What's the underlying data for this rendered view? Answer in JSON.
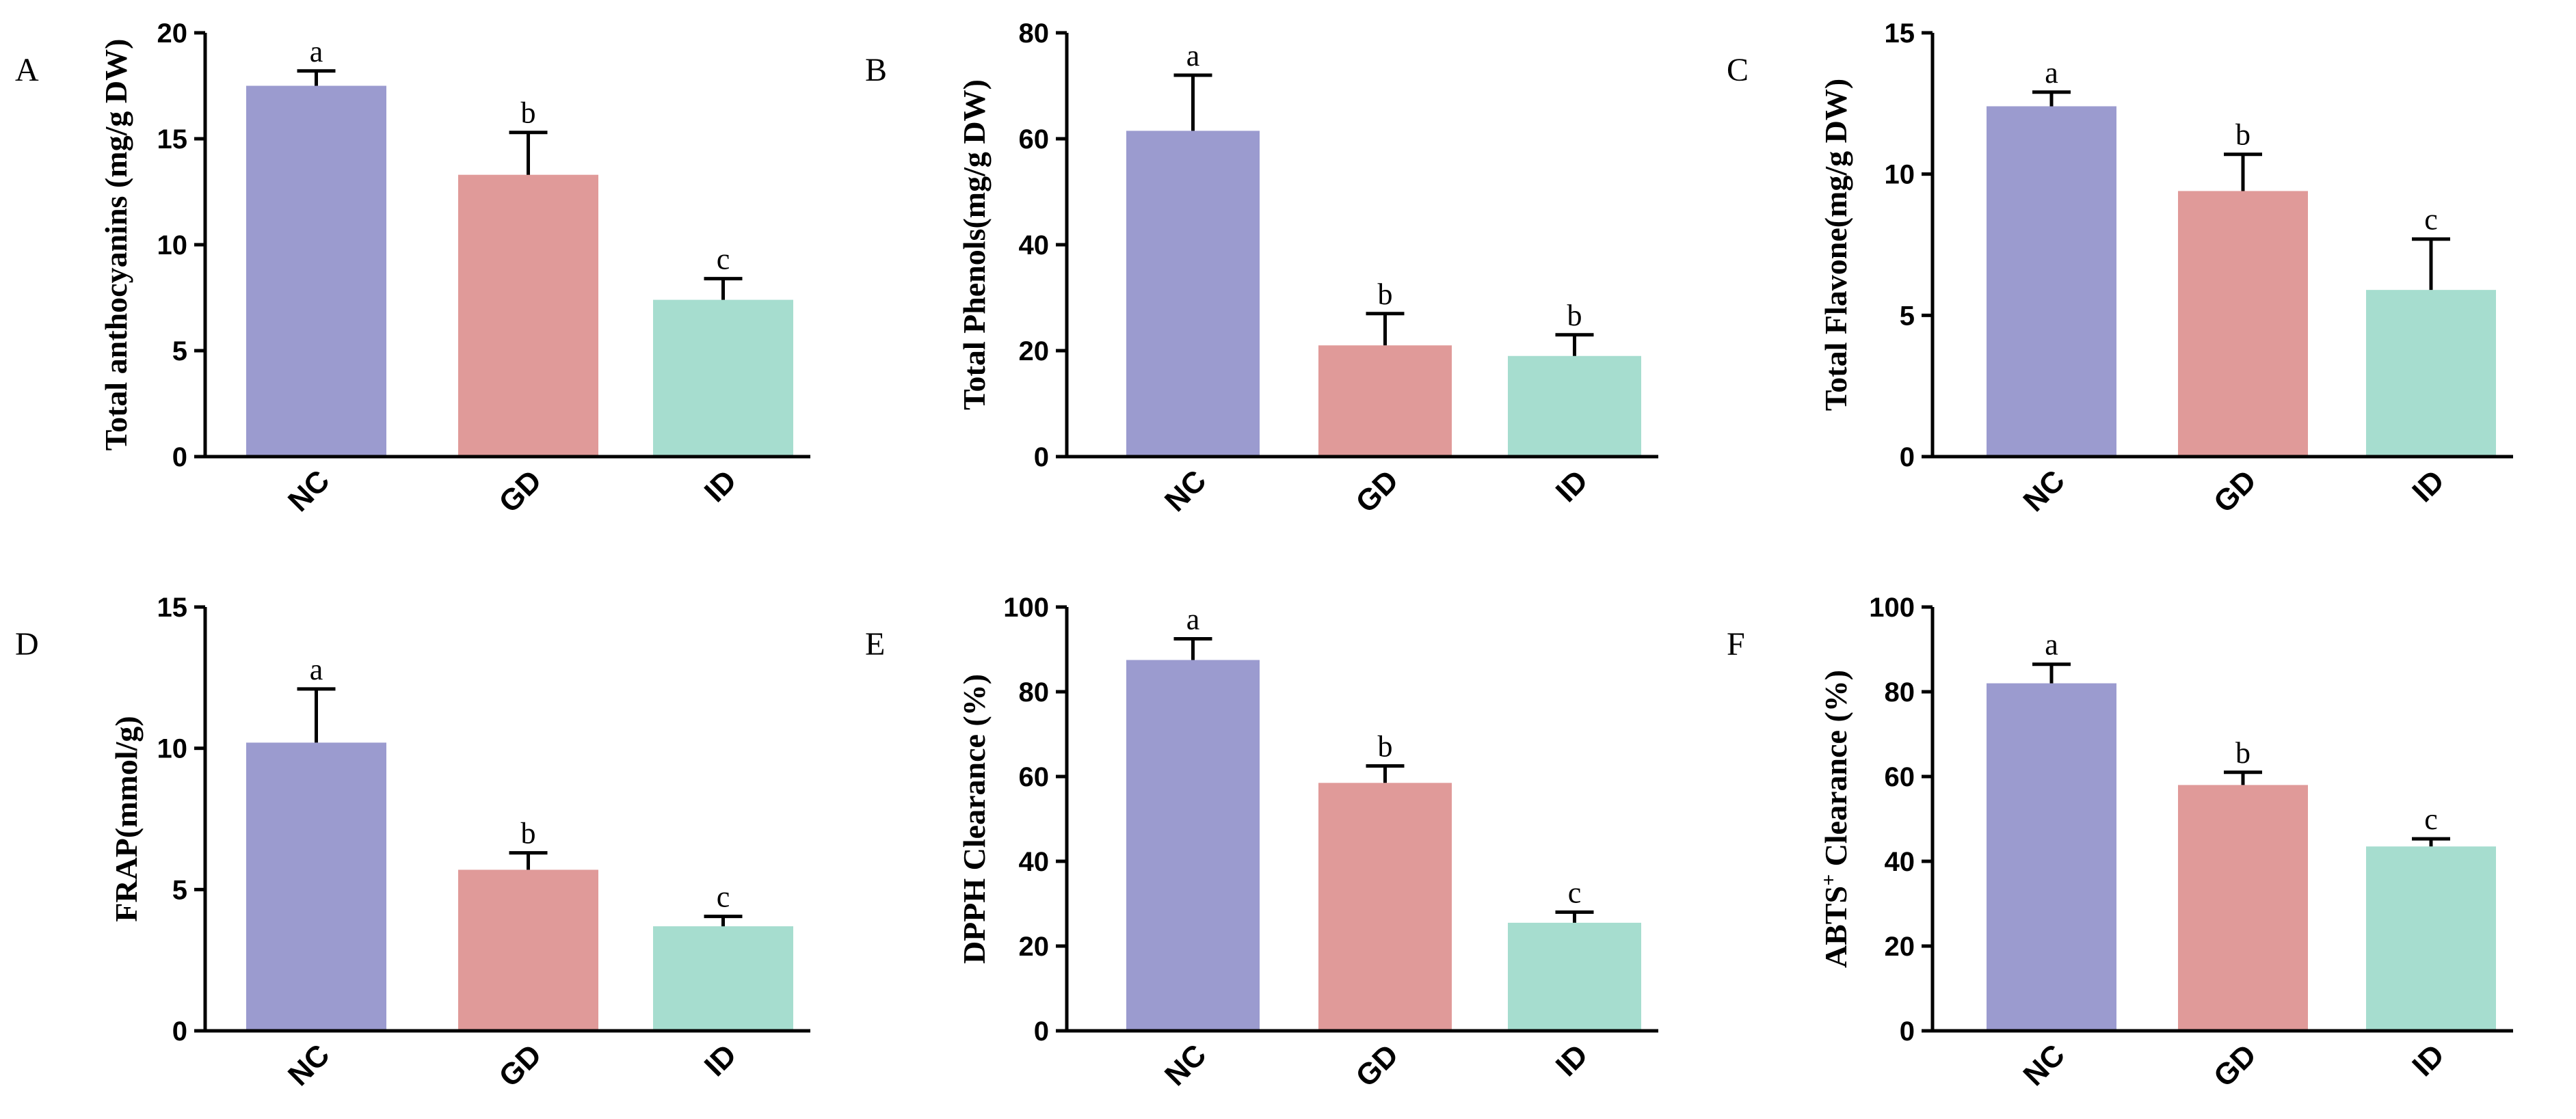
{
  "colors": {
    "NC": "#9b9bcf",
    "GD": "#e09a99",
    "ID": "#a6ddcf",
    "axis": "#000000"
  },
  "chart_data": [
    {
      "panel": "A",
      "type": "bar",
      "categories": [
        "NC",
        "GD",
        "ID"
      ],
      "values": [
        17.5,
        13.3,
        7.4
      ],
      "errors": [
        0.7,
        2.0,
        1.0
      ],
      "significance": [
        "a",
        "b",
        "c"
      ],
      "ylabel": "Total anthocyanins (mg/g DW)",
      "ylim": [
        0,
        20
      ],
      "yticks": [
        "0",
        "5",
        "10",
        "15",
        "20"
      ]
    },
    {
      "panel": "B",
      "type": "bar",
      "categories": [
        "NC",
        "GD",
        "ID"
      ],
      "values": [
        61.5,
        21.0,
        19.0
      ],
      "errors": [
        10.5,
        6.0,
        4.0
      ],
      "significance": [
        "a",
        "b",
        "b"
      ],
      "ylabel": "Total Phenols(mg/g DW)",
      "ylim": [
        0,
        80
      ],
      "yticks": [
        "0",
        "20",
        "40",
        "60",
        "80"
      ]
    },
    {
      "panel": "C",
      "type": "bar",
      "categories": [
        "NC",
        "GD",
        "ID"
      ],
      "values": [
        12.4,
        9.4,
        5.9
      ],
      "errors": [
        0.5,
        1.3,
        1.8
      ],
      "significance": [
        "a",
        "b",
        "c"
      ],
      "ylabel": "Total Flavone(mg/g DW)",
      "ylim": [
        0,
        15
      ],
      "yticks": [
        "0",
        "5",
        "10",
        "15"
      ]
    },
    {
      "panel": "D",
      "type": "bar",
      "categories": [
        "NC",
        "GD",
        "ID"
      ],
      "values": [
        10.2,
        5.7,
        3.7
      ],
      "errors": [
        1.9,
        0.6,
        0.35
      ],
      "significance": [
        "a",
        "b",
        "c"
      ],
      "ylabel": "FRAP(mmol/g)",
      "ylim": [
        0,
        15
      ],
      "yticks": [
        "0",
        "5",
        "10",
        "15"
      ]
    },
    {
      "panel": "E",
      "type": "bar",
      "categories": [
        "NC",
        "GD",
        "ID"
      ],
      "values": [
        87.5,
        58.5,
        25.5
      ],
      "errors": [
        5.0,
        4.0,
        2.5
      ],
      "significance": [
        "a",
        "b",
        "c"
      ],
      "ylabel": "DPPH Clearance (%)",
      "ylim": [
        0,
        100
      ],
      "yticks": [
        "0",
        "20",
        "40",
        "60",
        "80",
        "100"
      ]
    },
    {
      "panel": "F",
      "type": "bar",
      "categories": [
        "NC",
        "GD",
        "ID"
      ],
      "values": [
        82.0,
        58.0,
        43.5
      ],
      "errors": [
        4.5,
        3.0,
        1.8
      ],
      "significance": [
        "a",
        "b",
        "c"
      ],
      "ylabel": "ABTS",
      "ylabel_sup": "+",
      "ylabel_suffix": " Clearance (%)",
      "ylim": [
        0,
        100
      ],
      "yticks": [
        "0",
        "20",
        "40",
        "60",
        "80",
        "100"
      ]
    }
  ]
}
